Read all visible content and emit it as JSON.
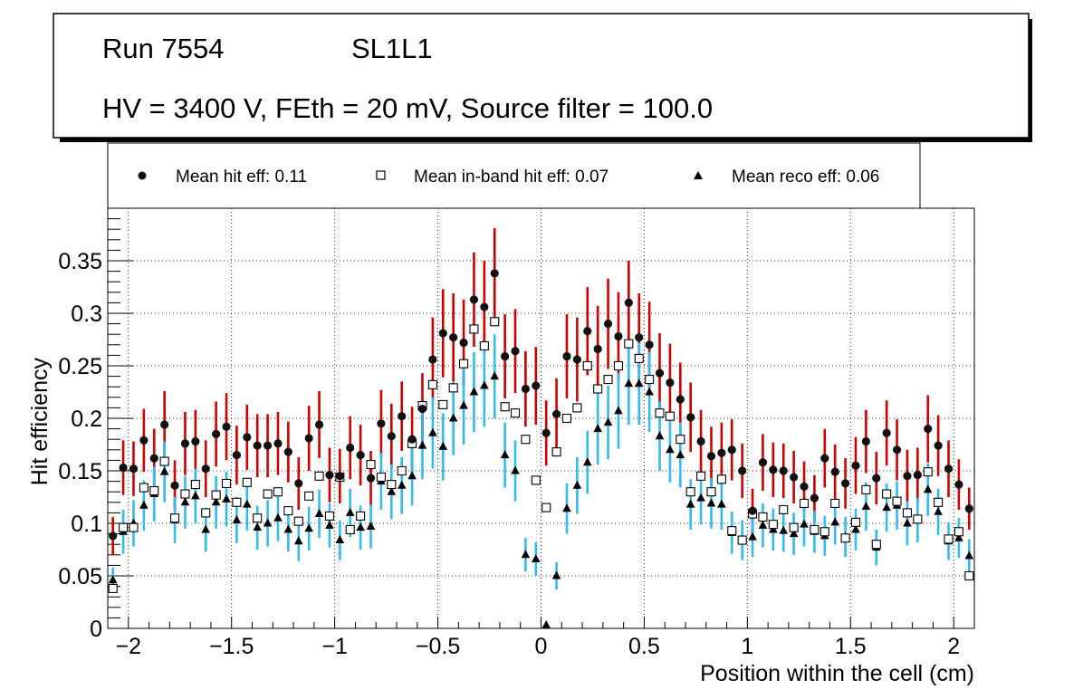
{
  "title_box": {
    "run_label": "Run 7554",
    "layer_label": "SL1L1",
    "conditions": "HV = 3400 V, FEth = 20 mV, Source filter = 100.0"
  },
  "legend": {
    "hit": "Mean hit  eff: 0.11",
    "inband": "Mean in-band hit eff: 0.07",
    "reco": "Mean reco eff: 0.06"
  },
  "colors": {
    "hit_err": "#cc0000",
    "inband_err": "#6600cc",
    "reco_err": "#33bbee",
    "grid": "#000000"
  },
  "chart_data": {
    "type": "scatter",
    "xlabel": "Position within the cell (cm)",
    "ylabel": "Hit efficiency",
    "xlim": [
      -2.1,
      2.1
    ],
    "ylim": [
      0,
      0.4
    ],
    "xticks": [
      -2,
      -1.5,
      -1,
      -0.5,
      0,
      0.5,
      1,
      1.5,
      2
    ],
    "xtick_labels": [
      "−2",
      "−1.5",
      "−1",
      "−0.5",
      "0",
      "0.5",
      "1",
      "1.5",
      "2"
    ],
    "yticks": [
      0,
      0.05,
      0.1,
      0.15,
      0.2,
      0.25,
      0.3,
      0.35
    ],
    "ytick_labels": [
      "0",
      "0.05",
      "0.1",
      "0.15",
      "0.2",
      "0.25",
      "0.3",
      "0.35"
    ],
    "grid": true,
    "x": [
      -2.075,
      -2.025,
      -1.975,
      -1.925,
      -1.875,
      -1.825,
      -1.775,
      -1.725,
      -1.675,
      -1.625,
      -1.575,
      -1.525,
      -1.475,
      -1.425,
      -1.375,
      -1.325,
      -1.275,
      -1.225,
      -1.175,
      -1.125,
      -1.075,
      -1.025,
      -0.975,
      -0.925,
      -0.875,
      -0.825,
      -0.775,
      -0.725,
      -0.675,
      -0.625,
      -0.575,
      -0.525,
      -0.475,
      -0.425,
      -0.375,
      -0.325,
      -0.275,
      -0.225,
      -0.175,
      -0.125,
      -0.075,
      -0.025,
      0.025,
      0.075,
      0.125,
      0.175,
      0.225,
      0.275,
      0.325,
      0.375,
      0.425,
      0.475,
      0.525,
      0.575,
      0.625,
      0.675,
      0.725,
      0.775,
      0.825,
      0.875,
      0.925,
      0.975,
      1.025,
      1.075,
      1.125,
      1.175,
      1.225,
      1.275,
      1.325,
      1.375,
      1.425,
      1.475,
      1.525,
      1.575,
      1.625,
      1.675,
      1.725,
      1.775,
      1.825,
      1.875,
      1.925,
      1.975,
      2.025,
      2.075
    ],
    "series": [
      {
        "name": "Mean hit  eff: 0.11",
        "marker": "circle",
        "values": [
          0.088,
          0.153,
          0.152,
          0.179,
          0.162,
          0.194,
          0.136,
          0.176,
          0.178,
          0.152,
          0.185,
          0.192,
          0.165,
          0.182,
          0.174,
          0.174,
          0.176,
          0.168,
          0.138,
          0.181,
          0.194,
          0.146,
          0.145,
          0.172,
          0.165,
          0.143,
          0.195,
          0.183,
          0.202,
          0.18,
          0.209,
          0.256,
          0.281,
          0.277,
          0.272,
          0.313,
          0.306,
          0.338,
          0.259,
          0.264,
          0.228,
          0.231,
          0.186,
          0.204,
          0.259,
          0.256,
          0.283,
          0.266,
          0.29,
          0.278,
          0.31,
          0.277,
          0.27,
          0.243,
          0.234,
          0.218,
          0.201,
          0.178,
          0.164,
          0.167,
          0.17,
          0.15,
          0.112,
          0.158,
          0.151,
          0.15,
          0.144,
          0.135,
          0.124,
          0.162,
          0.149,
          0.138,
          0.155,
          0.178,
          0.143,
          0.186,
          0.17,
          0.145,
          0.146,
          0.19,
          0.174,
          0.152,
          0.137,
          0.114
        ],
        "errors": [
          0.018,
          0.026,
          0.026,
          0.03,
          0.028,
          0.032,
          0.024,
          0.03,
          0.03,
          0.027,
          0.031,
          0.032,
          0.028,
          0.031,
          0.03,
          0.03,
          0.03,
          0.029,
          0.025,
          0.031,
          0.032,
          0.026,
          0.026,
          0.03,
          0.029,
          0.026,
          0.032,
          0.031,
          0.033,
          0.031,
          0.034,
          0.04,
          0.042,
          0.042,
          0.041,
          0.045,
          0.044,
          0.043,
          0.04,
          0.04,
          0.036,
          0.037,
          0.031,
          0.034,
          0.04,
          0.04,
          0.042,
          0.041,
          0.043,
          0.042,
          0.04,
          0.042,
          0.041,
          0.038,
          0.037,
          0.035,
          0.033,
          0.03,
          0.028,
          0.029,
          0.029,
          0.026,
          0.021,
          0.027,
          0.026,
          0.026,
          0.025,
          0.024,
          0.022,
          0.028,
          0.026,
          0.024,
          0.027,
          0.03,
          0.025,
          0.031,
          0.029,
          0.025,
          0.026,
          0.032,
          0.029,
          0.027,
          0.024,
          0.02
        ]
      },
      {
        "name": "Mean in-band hit eff: 0.07",
        "marker": "square-open",
        "values": [
          0.038,
          0.096,
          0.096,
          0.134,
          0.131,
          0.159,
          0.105,
          0.128,
          0.137,
          0.11,
          0.127,
          0.138,
          0.12,
          0.139,
          0.105,
          0.128,
          0.13,
          0.112,
          0.102,
          0.126,
          0.145,
          0.107,
          0.144,
          0.094,
          0.107,
          0.156,
          0.144,
          0.137,
          0.15,
          0.176,
          0.212,
          0.232,
          0.213,
          0.229,
          0.252,
          0.285,
          0.269,
          0.292,
          0.211,
          0.205,
          0.18,
          0.141,
          0.115,
          0.168,
          0.2,
          0.21,
          0.25,
          0.228,
          0.237,
          0.25,
          0.271,
          0.257,
          0.237,
          0.205,
          0.202,
          0.18,
          0.13,
          0.145,
          0.13,
          0.142,
          0.093,
          0.084,
          0.109,
          0.106,
          0.099,
          0.113,
          0.096,
          0.119,
          0.094,
          0.092,
          0.119,
          0.086,
          0.101,
          0.132,
          0.08,
          0.128,
          0.121,
          0.11,
          0.104,
          0.149,
          0.12,
          0.085,
          0.092,
          0.05
        ]
      },
      {
        "name": "Mean reco eff: 0.06",
        "marker": "triangle",
        "values": [
          0.046,
          0.092,
          0.1,
          0.117,
          0.128,
          0.149,
          0.103,
          0.12,
          0.126,
          0.094,
          0.12,
          0.123,
          0.103,
          0.118,
          0.096,
          0.1,
          0.105,
          0.094,
          0.083,
          0.095,
          0.109,
          0.098,
          0.084,
          0.11,
          0.096,
          0.097,
          0.14,
          0.13,
          0.136,
          0.145,
          0.174,
          0.186,
          0.173,
          0.2,
          0.212,
          0.225,
          0.231,
          0.24,
          0.165,
          0.15,
          0.07,
          0.066,
          0.003,
          0.05,
          0.114,
          0.136,
          0.158,
          0.19,
          0.196,
          0.207,
          0.233,
          0.233,
          0.225,
          0.183,
          0.17,
          0.165,
          0.118,
          0.124,
          0.119,
          0.118,
          0.091,
          0.084,
          0.087,
          0.098,
          0.094,
          0.093,
          0.09,
          0.099,
          0.092,
          0.088,
          0.101,
          0.087,
          0.094,
          0.116,
          0.077,
          0.115,
          0.117,
          0.1,
          0.103,
          0.132,
          0.111,
          0.083,
          0.086,
          0.069
        ],
        "errors": [
          0.012,
          0.021,
          0.022,
          0.024,
          0.026,
          0.029,
          0.022,
          0.025,
          0.026,
          0.021,
          0.025,
          0.026,
          0.022,
          0.025,
          0.021,
          0.022,
          0.022,
          0.021,
          0.019,
          0.021,
          0.023,
          0.021,
          0.019,
          0.023,
          0.021,
          0.021,
          0.027,
          0.026,
          0.027,
          0.028,
          0.032,
          0.034,
          0.032,
          0.035,
          0.037,
          0.038,
          0.039,
          0.04,
          0.031,
          0.029,
          0.016,
          0.016,
          0.003,
          0.013,
          0.024,
          0.027,
          0.03,
          0.034,
          0.035,
          0.036,
          0.039,
          0.039,
          0.038,
          0.033,
          0.031,
          0.031,
          0.024,
          0.025,
          0.024,
          0.024,
          0.02,
          0.019,
          0.019,
          0.021,
          0.02,
          0.02,
          0.02,
          0.021,
          0.02,
          0.019,
          0.021,
          0.019,
          0.02,
          0.023,
          0.017,
          0.023,
          0.023,
          0.021,
          0.021,
          0.025,
          0.022,
          0.018,
          0.019,
          0.016
        ]
      }
    ]
  }
}
